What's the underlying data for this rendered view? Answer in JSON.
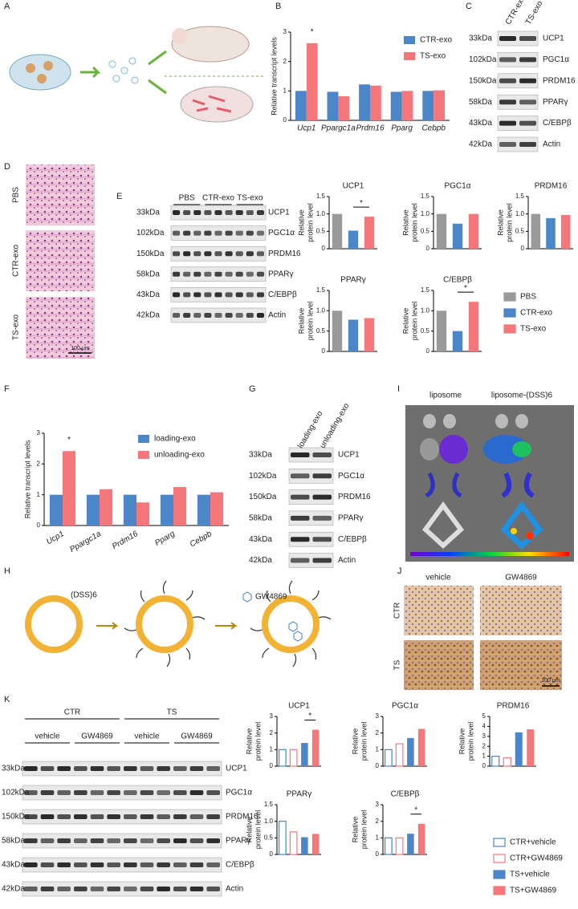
{
  "panel_labels": [
    "A",
    "B",
    "C",
    "D",
    "E",
    "F",
    "G",
    "H",
    "I",
    "J",
    "K"
  ],
  "chart_data": [
    {
      "type": "bar",
      "ylabel": "Relative transcript levels",
      "categories": [
        "Ucp1",
        "Ppargc1a",
        "Prdm16",
        "Pparg",
        "Cebpb"
      ],
      "series": [
        {
          "name": "CTR-exo",
          "color": "#4a86c8",
          "values": [
            1.0,
            0.97,
            1.22,
            0.97,
            1.0
          ]
        },
        {
          "name": "TS-exo",
          "color": "#f4777b",
          "values": [
            2.62,
            0.82,
            1.18,
            1.0,
            1.02
          ]
        }
      ],
      "ylim": [
        0,
        3
      ],
      "yticks": [
        0,
        1,
        2,
        3
      ],
      "annotation": "*"
    },
    {
      "type": "bar",
      "title": "UCP1",
      "ylabel": [
        "Relative",
        "protein level"
      ],
      "categories": [
        null,
        null,
        null
      ],
      "values": [
        1.0,
        0.52,
        0.92
      ],
      "colors": [
        "#9a9a9a",
        "#4a86c8",
        "#f4777b"
      ],
      "ylim": [
        0,
        1.5
      ],
      "yticks": [
        0,
        0.5,
        {
          "value": 1,
          "label": "1.0"
        },
        1.5
      ],
      "annotation": "*"
    },
    {
      "type": "bar",
      "title": "PGC1α",
      "ylabel": [
        "Relative",
        "protein level"
      ],
      "categories": [
        null,
        null,
        null
      ],
      "values": [
        1.0,
        0.72,
        1.0
      ],
      "colors": [
        "#9a9a9a",
        "#4a86c8",
        "#f4777b"
      ],
      "ylim": [
        0,
        1.5
      ],
      "yticks": [
        0,
        0.5,
        {
          "value": 1,
          "label": "1.0"
        },
        1.5
      ]
    },
    {
      "type": "bar",
      "title": "PRDM16",
      "ylabel": [
        "Relative",
        "protein level"
      ],
      "categories": [
        null,
        null,
        null
      ],
      "values": [
        1.0,
        0.88,
        0.97
      ],
      "colors": [
        "#9a9a9a",
        "#4a86c8",
        "#f4777b"
      ],
      "ylim": [
        0,
        1.5
      ],
      "yticks": [
        0,
        0.5,
        {
          "value": 1,
          "label": "1.0"
        },
        1.5
      ]
    },
    {
      "type": "bar",
      "title": "PPARγ",
      "ylabel": [
        "Relative",
        "protein level"
      ],
      "categories": [
        null,
        null,
        null
      ],
      "values": [
        1.0,
        0.78,
        0.82
      ],
      "colors": [
        "#9a9a9a",
        "#4a86c8",
        "#f4777b"
      ],
      "ylim": [
        0,
        1.5
      ],
      "yticks": [
        0,
        0.5,
        {
          "value": 1,
          "label": "1.0"
        },
        1.5
      ]
    },
    {
      "type": "bar",
      "title": "C/EBPβ",
      "ylabel": [
        "Relative",
        "protein level"
      ],
      "categories": [
        null,
        null,
        null
      ],
      "values": [
        1.0,
        0.5,
        1.22
      ],
      "colors": [
        "#9a9a9a",
        "#4a86c8",
        "#f4777b"
      ],
      "ylim": [
        0,
        1.5
      ],
      "yticks": [
        0,
        0.5,
        {
          "value": 1,
          "label": "1.0"
        },
        1.5
      ],
      "annotation": "*"
    },
    {
      "type": "bar",
      "ylabel": "Relative transcript levels",
      "categories": [
        "Ucp1",
        "Ppargc1a",
        "Prdm16",
        "Pparg",
        "Cebpb"
      ],
      "series": [
        {
          "name": "loading-exo",
          "color": "#4a86c8",
          "values": [
            1.0,
            1.0,
            1.0,
            1.0,
            1.0
          ]
        },
        {
          "name": "unloading-exo",
          "color": "#f4777b",
          "values": [
            2.42,
            1.18,
            0.75,
            1.25,
            1.08
          ]
        }
      ],
      "ylim": [
        0,
        3
      ],
      "yticks": [
        0,
        1,
        2,
        3
      ],
      "annotation": "*"
    },
    {
      "type": "bar",
      "title": "UCP1",
      "ylabel": [
        "Relative",
        "protein level"
      ],
      "categories": [
        null,
        null,
        null,
        null
      ],
      "values": [
        1.0,
        1.0,
        1.4,
        2.2
      ],
      "colors": [
        "#4a86c8",
        "#f4777b",
        "#4a86c8",
        "#f4777b"
      ],
      "filled": [
        false,
        false,
        true,
        true
      ],
      "ylim": [
        0,
        3
      ],
      "yticks": [
        0,
        1,
        2,
        3
      ],
      "annotation": "*"
    },
    {
      "type": "bar",
      "title": "PGC1α",
      "ylabel": [
        "Relative",
        "protein level"
      ],
      "categories": [
        null,
        null,
        null,
        null
      ],
      "values": [
        1.0,
        1.35,
        1.7,
        2.25
      ],
      "colors": [
        "#4a86c8",
        "#f4777b",
        "#4a86c8",
        "#f4777b"
      ],
      "filled": [
        false,
        false,
        true,
        true
      ],
      "ylim": [
        0,
        3
      ],
      "yticks": [
        0,
        1,
        2,
        3
      ]
    },
    {
      "type": "bar",
      "title": "PRDM16",
      "ylabel": [
        "Relative",
        "protein level"
      ],
      "categories": [
        null,
        null,
        null,
        null
      ],
      "values": [
        1.0,
        0.85,
        3.4,
        3.7
      ],
      "colors": [
        "#4a86c8",
        "#f4777b",
        "#4a86c8",
        "#f4777b"
      ],
      "filled": [
        false,
        false,
        true,
        true
      ],
      "ylim": [
        0,
        5
      ],
      "yticks": [
        0,
        1,
        2,
        3,
        4,
        5
      ]
    },
    {
      "type": "bar",
      "title": "PPARγ",
      "ylabel": [
        "Relative",
        "protein level"
      ],
      "categories": [
        null,
        null,
        null,
        null
      ],
      "values": [
        1.0,
        0.68,
        0.52,
        0.62
      ],
      "colors": [
        "#4a86c8",
        "#f4777b",
        "#4a86c8",
        "#f4777b"
      ],
      "filled": [
        false,
        false,
        true,
        true
      ],
      "ylim": [
        0,
        1.5
      ],
      "yticks": [
        0,
        0.5,
        {
          "value": 1,
          "label": "1.0"
        },
        1.5
      ]
    },
    {
      "type": "bar",
      "title": "C/EBPβ",
      "ylabel": [
        "Relative",
        "protein level"
      ],
      "categories": [
        null,
        null,
        null,
        null
      ],
      "values": [
        1.0,
        1.0,
        1.25,
        1.85
      ],
      "colors": [
        "#4a86c8",
        "#f4777b",
        "#4a86c8",
        "#f4777b"
      ],
      "filled": [
        false,
        false,
        true,
        true
      ],
      "ylim": [
        0,
        3
      ],
      "yticks": [
        0,
        1,
        2,
        3
      ],
      "annotation": "*"
    }
  ],
  "legends": {
    "E": [
      {
        "name": "PBS",
        "color": "#9a9a9a",
        "filled": true
      },
      {
        "name": "CTR-exo",
        "color": "#4a86c8",
        "filled": true
      },
      {
        "name": "TS-exo",
        "color": "#f4777b",
        "filled": true
      }
    ],
    "K": [
      {
        "name": "CTR+vehicle",
        "color": "#4a86c8",
        "filled": false
      },
      {
        "name": "CTR+GW4869",
        "color": "#f4777b",
        "filled": false
      },
      {
        "name": "TS+vehicle",
        "color": "#4a86c8",
        "filled": true
      },
      {
        "name": "TS+GW4869",
        "color": "#f4777b",
        "filled": true
      }
    ]
  },
  "blots": {
    "C": {
      "columns": [
        "CTR-exo",
        "TS-exo"
      ],
      "rows": [
        {
          "size": "33kDa",
          "protein": "UCP1"
        },
        {
          "size": "102kDa",
          "protein": "PGC1α"
        },
        {
          "size": "150kDa",
          "protein": "PRDM16"
        },
        {
          "size": "58kDa",
          "protein": "PPARγ"
        },
        {
          "size": "43kDa",
          "protein": "C/EBPβ"
        },
        {
          "size": "42kDa",
          "protein": "Actin"
        }
      ]
    },
    "E": {
      "groups": [
        "PBS",
        "CTR-exo",
        "TS-exo"
      ],
      "rows": [
        {
          "size": "33kDa",
          "protein": "UCP1"
        },
        {
          "size": "102kDa",
          "protein": "PGC1α"
        },
        {
          "size": "150kDa",
          "protein": "PRDM16"
        },
        {
          "size": "58kDa",
          "protein": "PPARγ"
        },
        {
          "size": "43kDa",
          "protein": "C/EBPβ"
        },
        {
          "size": "42kDa",
          "protein": "Actin"
        }
      ]
    },
    "G": {
      "columns": [
        "loading-exo",
        "unloading-exo"
      ],
      "rows": [
        {
          "size": "33kDa",
          "protein": "UCP1"
        },
        {
          "size": "102kDa",
          "protein": "PGC1α"
        },
        {
          "size": "150kDa",
          "protein": "PRDM16"
        },
        {
          "size": "58kDa",
          "protein": "PPARγ"
        },
        {
          "size": "43kDa",
          "protein": "C/EBPβ"
        },
        {
          "size": "42kDa",
          "protein": "Actin"
        }
      ]
    },
    "K": {
      "groups": [
        "CTR",
        "TS"
      ],
      "subgroups": [
        "vehicle",
        "GW4869",
        "vehicle",
        "GW4869"
      ],
      "rows": [
        {
          "size": "33kDa",
          "protein": "UCP1"
        },
        {
          "size": "102kDa",
          "protein": "PGC1α"
        },
        {
          "size": "150kDa",
          "protein": "PRDM16"
        },
        {
          "size": "58kDa",
          "protein": "PPARγ"
        },
        {
          "size": "43kDa",
          "protein": "C/EBPβ"
        },
        {
          "size": "42kDa",
          "protein": "Actin"
        }
      ]
    }
  },
  "histology_D": {
    "labels": [
      "PBS",
      "CTR-exo",
      "TS-exo"
    ],
    "scale": "100 μm"
  },
  "imaging_I": {
    "labels": [
      "liposome",
      "liposome-(DSS)6"
    ]
  },
  "diagram_H": {
    "labels": [
      "(DSS)6",
      "GW4869"
    ]
  },
  "histology_J": {
    "columns": [
      "vehicle",
      "GW4869"
    ],
    "rows": [
      "CTR",
      "TS"
    ],
    "scale": "100 μm"
  }
}
